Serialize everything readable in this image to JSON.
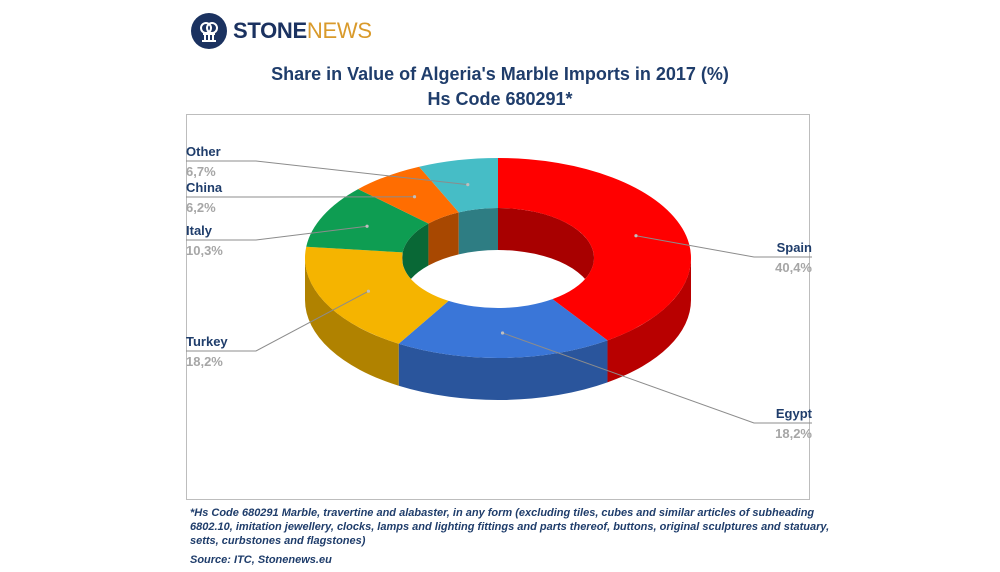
{
  "brand": {
    "part1": "STONE",
    "part2": "NEWS"
  },
  "title": {
    "line1": "Share in Value of Algeria's Marble Imports in 2017 (%)",
    "line2": "Hs Code 680291*"
  },
  "footnote": "*Hs Code 680291 Marble, travertine and alabaster, in any form (excluding tiles, cubes and similar articles of subheading 6802.10, imitation jewellery, clocks, lamps and lighting fittings and parts thereof, buttons, original sculptures and statuary, setts, curbstones and flagstones)",
  "source": "Source: ITC, Stonenews.eu",
  "chart_data": {
    "type": "pie",
    "variant": "3d-doughnut",
    "title": "Share in Value of Algeria's Marble Imports in 2017 (%)",
    "subtitle": "Hs Code 680291*",
    "unit": "%",
    "slices": [
      {
        "name": "Spain",
        "value": 40.4,
        "value_label": "40,4%",
        "color": "#ff0000"
      },
      {
        "name": "Egypt",
        "value": 18.2,
        "value_label": "18,2%",
        "color": "#3a76d8"
      },
      {
        "name": "Turkey",
        "value": 18.2,
        "value_label": "18,2%",
        "color": "#f5b400"
      },
      {
        "name": "Italy",
        "value": 10.3,
        "value_label": "10,3%",
        "color": "#0e9d52"
      },
      {
        "name": "China",
        "value": 6.2,
        "value_label": "6,2%",
        "color": "#ff6d01"
      },
      {
        "name": "Other",
        "value": 6.7,
        "value_label": "6,7%",
        "color": "#46bdc6"
      }
    ],
    "legend": "none",
    "labels": "outside-with-leader-lines"
  }
}
